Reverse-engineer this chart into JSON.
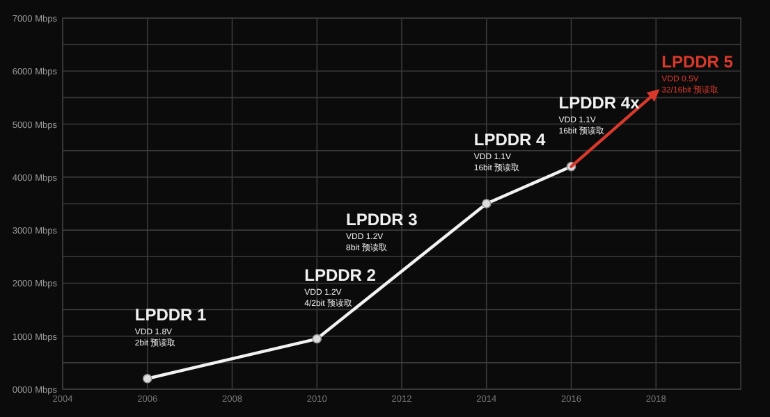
{
  "chart_data": {
    "type": "line",
    "series": [
      {
        "color": "#f2f2f2",
        "marker": "circle",
        "x": [
          2006,
          2010,
          2014,
          2016
        ],
        "values": [
          200,
          950,
          3500,
          4200
        ]
      },
      {
        "color": "#d9392b",
        "marker": "none",
        "x": [
          2016,
          2018
        ],
        "values": [
          4200,
          5600
        ]
      }
    ],
    "xlim": [
      2004,
      2020
    ],
    "ylim": [
      0,
      7000
    ],
    "xticks": [
      2004,
      2006,
      2008,
      2010,
      2012,
      2014,
      2016,
      2018
    ],
    "yticks": [
      {
        "value": 0,
        "label": "0000 Mbps"
      },
      {
        "value": 500,
        "label": null
      },
      {
        "value": 1000,
        "label": "1000 Mbps"
      },
      {
        "value": 1500,
        "label": null
      },
      {
        "value": 2000,
        "label": "2000 Mbps"
      },
      {
        "value": 2500,
        "label": null
      },
      {
        "value": 3000,
        "label": "3000 Mbps"
      },
      {
        "value": 3500,
        "label": null
      },
      {
        "value": 4000,
        "label": "4000 Mbps"
      },
      {
        "value": 4500,
        "label": null
      },
      {
        "value": 5000,
        "label": "5000 Mbps"
      },
      {
        "value": 5500,
        "label": null
      },
      {
        "value": 6000,
        "label": "6000 Mbps"
      },
      {
        "value": 6500,
        "label": null
      },
      {
        "value": 7000,
        "label": "7000 Mbps"
      }
    ],
    "grid": true,
    "annotations": [
      {
        "text": "LPDDR 1\nVDD 1.8V\n2bit 预读取",
        "x": 2006,
        "y": 200
      },
      {
        "text": "LPDDR 2\nVDD 1.2V\n4/2bit 预读取",
        "x": 2010,
        "y": 950
      },
      {
        "text": "LPDDR 3\nVDD 1.2V\n8bit 预读取",
        "x": 2012,
        "y": 2200
      },
      {
        "text": "LPDDR 4\nVDD 1.1V\n16bit 预读取",
        "x": 2014,
        "y": 3500
      },
      {
        "text": "LPDDR 4x\nVDD 1.1V\n16bit 预读取",
        "x": 2016,
        "y": 4200
      },
      {
        "text": "LPDDR 5\nVDD 0.5V\n32/16bit 预读取",
        "x": 2018,
        "y": 5600
      }
    ]
  }
}
